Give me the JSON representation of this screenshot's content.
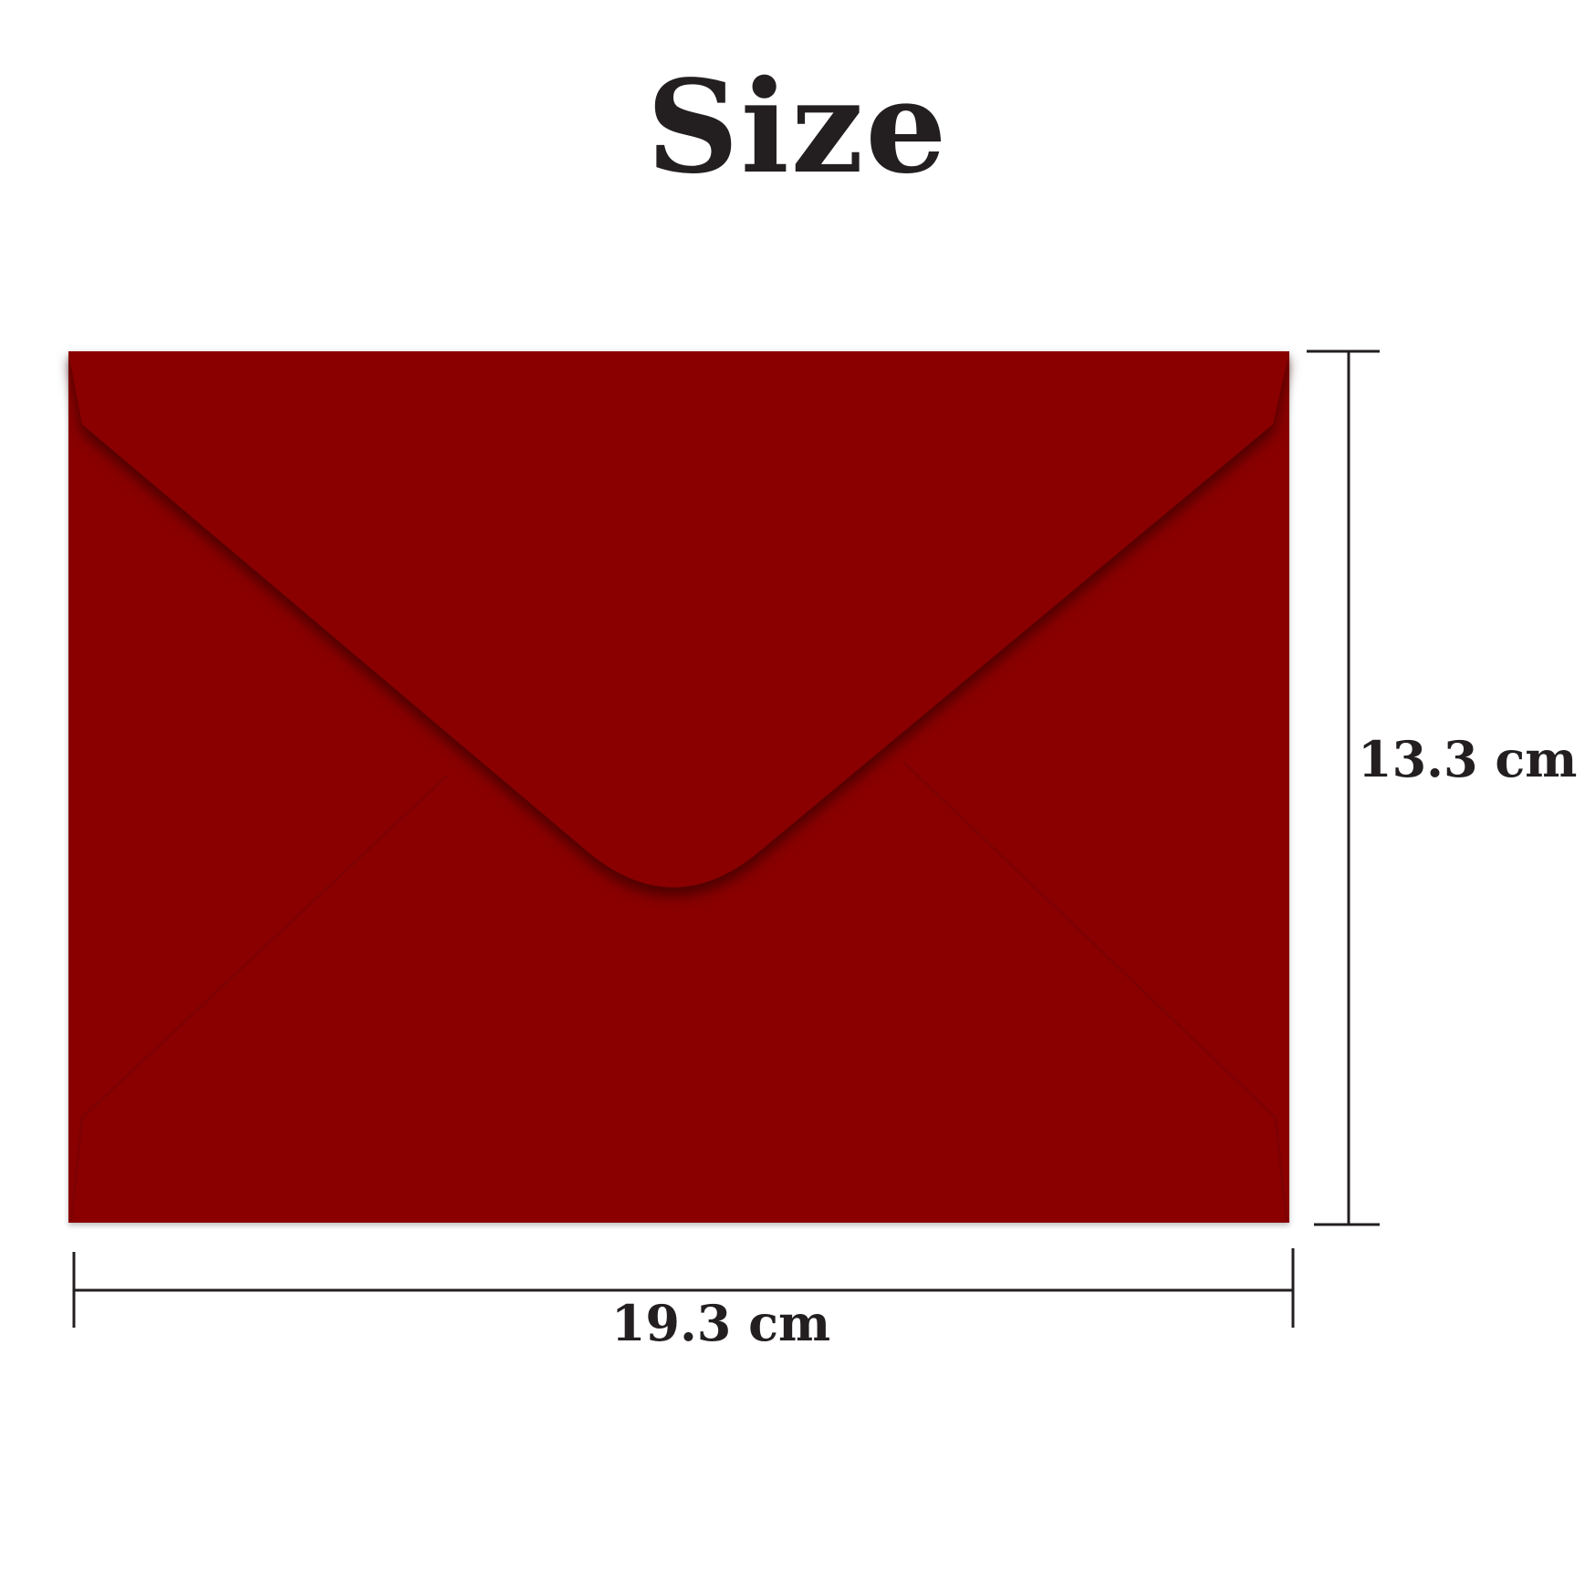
{
  "title": "Size",
  "product": {
    "name": "envelope",
    "color": "#8a0205",
    "flap_shadow_color": "#5a0003"
  },
  "dimensions": {
    "width_label": "19.3 cm",
    "height_label": "13.3 cm",
    "line_color": "#231f20"
  }
}
